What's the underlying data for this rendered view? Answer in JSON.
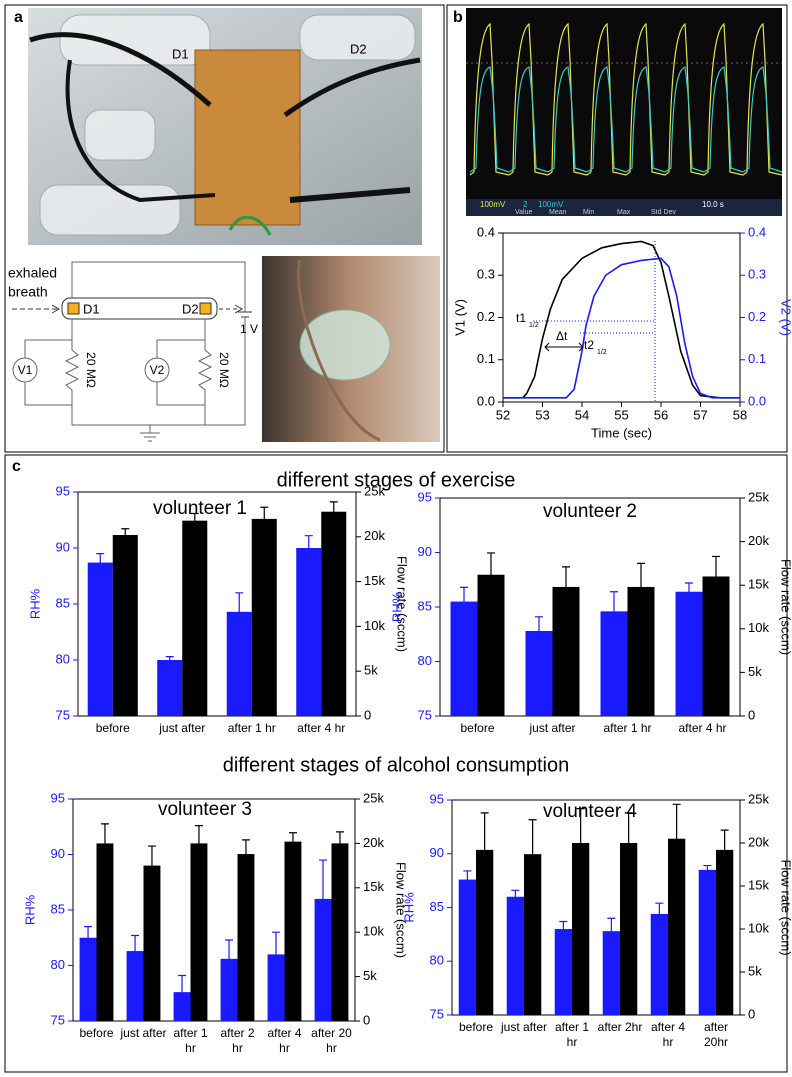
{
  "panel_labels": [
    "a",
    "b",
    "c"
  ],
  "photo_labels": [
    "D1",
    "D2"
  ],
  "circuit": {
    "input_lines": [
      "exhaled",
      "breath"
    ],
    "d1": "D1",
    "d2": "D2",
    "voltage": "1 V",
    "meters": [
      "V1",
      "V2"
    ],
    "resistors": [
      "20 MΩ",
      "20 MΩ"
    ]
  },
  "scope": {
    "ch1": "100mV",
    "ch2_num": "2",
    "ch2": "100mV",
    "stats": [
      "Value",
      "Mean",
      "Min",
      "Max",
      "Std Dev"
    ],
    "timebase": "10.0 s"
  },
  "section_titles": [
    "different stages of exercise",
    "different stages of alcohol consumption"
  ],
  "chart_data": [
    {
      "type": "line",
      "xlabel": "Time (sec)",
      "ylabel": "V1 (V)",
      "y2label": "V2 (V)",
      "xlim": [
        52,
        58
      ],
      "xticks": [
        52,
        53,
        54,
        55,
        56,
        57,
        58
      ],
      "ylim": [
        0,
        0.4
      ],
      "yticks": [
        {
          "value": 0,
          "label": "0.0"
        },
        0.1,
        0.2,
        0.3,
        0.4
      ],
      "y2lim": [
        0,
        0.4
      ],
      "y2ticks": [
        {
          "value": 0,
          "label": "0.0"
        },
        0.1,
        0.2,
        0.3,
        0.4
      ],
      "annotations": [
        {
          "text": "t1",
          "sub": "1/2"
        },
        {
          "text": "Δt"
        },
        {
          "text": "t2",
          "sub": "1/2"
        }
      ],
      "series": [
        {
          "color": "#000000",
          "x": [
            52,
            52.5,
            52.6,
            52.8,
            53,
            53.2,
            53.5,
            54,
            54.5,
            55,
            55.5,
            55.8,
            56,
            56.2,
            56.5,
            56.8,
            57,
            57.5,
            58
          ],
          "values": [
            0.01,
            0.01,
            0.02,
            0.06,
            0.15,
            0.22,
            0.29,
            0.34,
            0.365,
            0.375,
            0.38,
            0.37,
            0.33,
            0.25,
            0.12,
            0.04,
            0.015,
            0.01,
            0.01
          ]
        },
        {
          "color": "#1a1aff",
          "axis": "y2",
          "x": [
            52,
            53,
            53.6,
            53.8,
            54,
            54.1,
            54.3,
            54.6,
            55,
            55.5,
            56,
            56.2,
            56.4,
            56.6,
            56.8,
            57,
            57.3,
            58
          ],
          "values": [
            0.01,
            0.01,
            0.01,
            0.03,
            0.12,
            0.18,
            0.25,
            0.3,
            0.325,
            0.335,
            0.34,
            0.32,
            0.25,
            0.14,
            0.06,
            0.02,
            0.01,
            0.01
          ]
        }
      ]
    },
    {
      "type": "bar",
      "title": "volunteer 1",
      "ylabel": "RH%",
      "y2label": "Flow rate (sccm)",
      "categories": [
        "before",
        "just after",
        "after 1 hr",
        "after 4 hr"
      ],
      "ylim": [
        75,
        95
      ],
      "yticks": [
        75,
        80,
        85,
        90,
        95
      ],
      "y2lim": [
        0,
        25000
      ],
      "y2ticks": [
        0,
        {
          "value": 5000,
          "label": "5k"
        },
        {
          "value": 10000,
          "label": "10k"
        },
        {
          "value": 15000,
          "label": "15k"
        },
        {
          "value": 20000,
          "label": "20k"
        },
        {
          "value": 25000,
          "label": "25k"
        }
      ],
      "series": [
        {
          "color": "#1a1aff",
          "values": [
            88.7,
            80.0,
            84.3,
            90.0
          ],
          "errors": [
            0.8,
            0.3,
            1.7,
            1.1
          ]
        },
        {
          "color": "#000000",
          "axis": "y2",
          "values": [
            20200,
            21800,
            22000,
            22800
          ],
          "errors": [
            700,
            800,
            1300,
            1100
          ]
        }
      ]
    },
    {
      "type": "bar",
      "title": "volunteer 2",
      "ylabel": "RH%",
      "y2label": "Flow rate (sccm)",
      "categories": [
        "before",
        "just after",
        "after 1 hr",
        "after 4 hr"
      ],
      "ylim": [
        75,
        95
      ],
      "yticks": [
        75,
        80,
        85,
        90,
        95
      ],
      "y2lim": [
        0,
        25000
      ],
      "y2ticks": [
        0,
        {
          "value": 5000,
          "label": "5k"
        },
        {
          "value": 10000,
          "label": "10k"
        },
        {
          "value": 15000,
          "label": "15k"
        },
        {
          "value": 20000,
          "label": "20k"
        },
        {
          "value": 25000,
          "label": "25k"
        }
      ],
      "series": [
        {
          "color": "#1a1aff",
          "values": [
            85.5,
            82.8,
            84.6,
            86.4
          ],
          "errors": [
            1.3,
            1.3,
            1.8,
            0.8
          ]
        },
        {
          "color": "#000000",
          "axis": "y2",
          "values": [
            16200,
            14800,
            14800,
            16000
          ],
          "errors": [
            2500,
            2300,
            2700,
            2300
          ]
        }
      ]
    },
    {
      "type": "bar",
      "title": "volunteer 3",
      "ylabel": "RH%",
      "y2label": "Flow rate (sccm)",
      "categories": [
        "before",
        "just after",
        "after 1 hr",
        "after 2 hr",
        "after 4 hr",
        "after 20 hr"
      ],
      "ylim": [
        75,
        95
      ],
      "yticks": [
        75,
        80,
        85,
        90,
        95
      ],
      "y2lim": [
        0,
        25000
      ],
      "y2ticks": [
        0,
        {
          "value": 5000,
          "label": "5k"
        },
        {
          "value": 10000,
          "label": "10k"
        },
        {
          "value": 15000,
          "label": "15k"
        },
        {
          "value": 20000,
          "label": "20k"
        },
        {
          "value": 25000,
          "label": "25k"
        }
      ],
      "series": [
        {
          "color": "#1a1aff",
          "values": [
            82.5,
            81.3,
            77.6,
            80.6,
            81.0,
            86.0
          ],
          "errors": [
            1.0,
            1.4,
            1.5,
            1.7,
            2.0,
            3.5
          ]
        },
        {
          "color": "#000000",
          "axis": "y2",
          "values": [
            20000,
            17500,
            20000,
            18800,
            20200,
            20000
          ],
          "errors": [
            2200,
            2200,
            2000,
            1600,
            1000,
            1300
          ]
        }
      ]
    },
    {
      "type": "bar",
      "title": "volunteer 4",
      "ylabel": "RH%",
      "y2label": "Flow rate (sccm)",
      "categories": [
        "before",
        "just after",
        "after 1 hr",
        "after 2hr",
        "after 4 hr",
        "after 20hr"
      ],
      "ylim": [
        75,
        95
      ],
      "yticks": [
        75,
        80,
        85,
        90,
        95
      ],
      "y2lim": [
        0,
        25000
      ],
      "y2ticks": [
        0,
        {
          "value": 5000,
          "label": "5k"
        },
        {
          "value": 10000,
          "label": "10k"
        },
        {
          "value": 15000,
          "label": "15k"
        },
        {
          "value": 20000,
          "label": "20k"
        },
        {
          "value": 25000,
          "label": "25k"
        }
      ],
      "series": [
        {
          "color": "#1a1aff",
          "values": [
            87.6,
            86.0,
            83.0,
            82.8,
            84.4,
            88.5
          ],
          "errors": [
            0.8,
            0.6,
            0.7,
            1.2,
            1.0,
            0.4
          ]
        },
        {
          "color": "#000000",
          "axis": "y2",
          "values": [
            19200,
            18700,
            20000,
            20000,
            20500,
            19200
          ],
          "errors": [
            4300,
            4000,
            4000,
            3500,
            4000,
            2300
          ]
        }
      ]
    }
  ]
}
